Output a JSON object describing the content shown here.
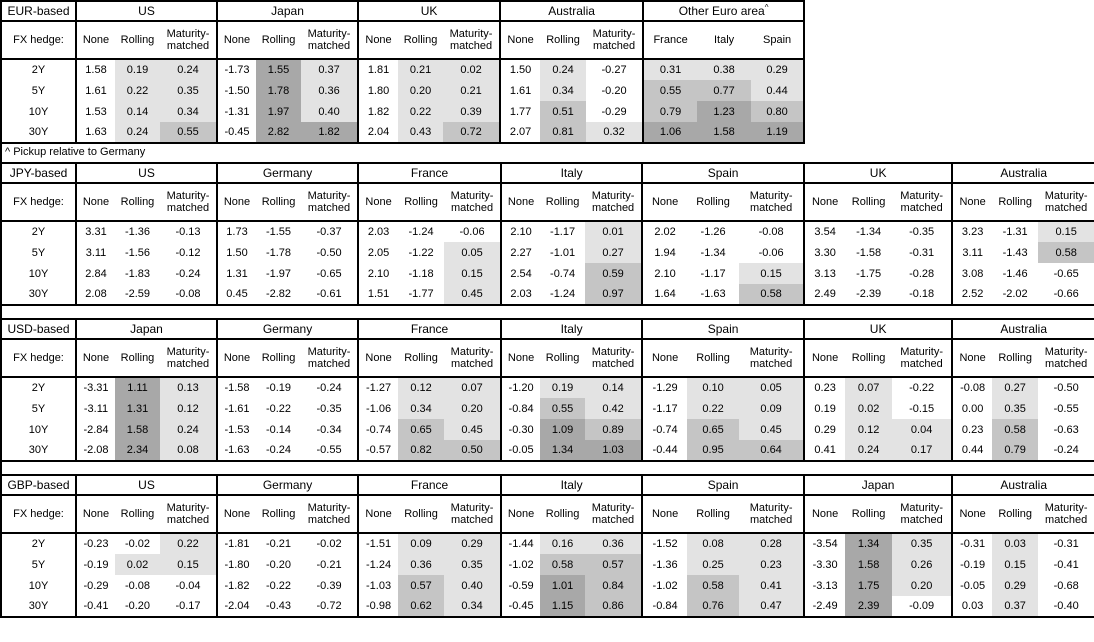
{
  "page": {
    "footnote": "^ Pickup relative to Germany",
    "fx_hedge_label": "FX hedge:",
    "maturities": [
      "2Y",
      "5Y",
      "10Y",
      "30Y"
    ]
  },
  "shading": {
    "light": "#e3e3e3",
    "medium": "#c5c5c5",
    "dark": "#a8a8a8",
    "thresholds": [
      0,
      0.5,
      1.0
    ],
    "rule": "hedged/pickup columns: value<0 white, 0 to 0.5 light, 0.5 to 1 medium, >=1 dark"
  },
  "tables": [
    {
      "base": "EUR-based",
      "groups": [
        {
          "name": "US",
          "cols": [
            "None",
            "Rolling",
            "Maturity-matched"
          ],
          "shaded_cols": [
            false,
            true,
            true
          ],
          "rows": [
            [
              "1.58",
              "0.19",
              "0.24"
            ],
            [
              "1.61",
              "0.22",
              "0.35"
            ],
            [
              "1.53",
              "0.14",
              "0.34"
            ],
            [
              "1.63",
              "0.24",
              "0.55"
            ]
          ]
        },
        {
          "name": "Japan",
          "cols": [
            "None",
            "Rolling",
            "Maturity-matched"
          ],
          "shaded_cols": [
            false,
            true,
            true
          ],
          "rows": [
            [
              "-1.73",
              "1.55",
              "0.37"
            ],
            [
              "-1.50",
              "1.78",
              "0.36"
            ],
            [
              "-1.31",
              "1.97",
              "0.40"
            ],
            [
              "-0.45",
              "2.82",
              "1.82"
            ]
          ]
        },
        {
          "name": "UK",
          "cols": [
            "None",
            "Rolling",
            "Maturity-matched"
          ],
          "shaded_cols": [
            false,
            true,
            true
          ],
          "rows": [
            [
              "1.81",
              "0.21",
              "0.02"
            ],
            [
              "1.80",
              "0.20",
              "0.21"
            ],
            [
              "1.82",
              "0.22",
              "0.39"
            ],
            [
              "2.04",
              "0.43",
              "0.72"
            ]
          ]
        },
        {
          "name": "Australia",
          "cols": [
            "None",
            "Rolling",
            "Maturity-matched"
          ],
          "shaded_cols": [
            false,
            true,
            true
          ],
          "rows": [
            [
              "1.50",
              "0.24",
              "-0.27"
            ],
            [
              "1.61",
              "0.34",
              "-0.20"
            ],
            [
              "1.77",
              "0.51",
              "-0.29"
            ],
            [
              "2.07",
              "0.81",
              "0.32"
            ]
          ]
        },
        {
          "name": "Other Euro area",
          "footnote_mark": "^",
          "cols": [
            "France",
            "Italy",
            "Spain"
          ],
          "shaded_cols": [
            true,
            true,
            true
          ],
          "rows": [
            [
              "0.31",
              "0.38",
              "0.29"
            ],
            [
              "0.55",
              "0.77",
              "0.44"
            ],
            [
              "0.79",
              "1.23",
              "0.80"
            ],
            [
              "1.06",
              "1.58",
              "1.19"
            ]
          ]
        }
      ]
    },
    {
      "base": "JPY-based",
      "groups": [
        {
          "name": "US",
          "cols": [
            "None",
            "Rolling",
            "Maturity-matched"
          ],
          "shaded_cols": [
            false,
            true,
            true
          ],
          "rows": [
            [
              "3.31",
              "-1.36",
              "-0.13"
            ],
            [
              "3.11",
              "-1.56",
              "-0.12"
            ],
            [
              "2.84",
              "-1.83",
              "-0.24"
            ],
            [
              "2.08",
              "-2.59",
              "-0.08"
            ]
          ]
        },
        {
          "name": "Germany",
          "cols": [
            "None",
            "Rolling",
            "Maturity-matched"
          ],
          "shaded_cols": [
            false,
            true,
            true
          ],
          "rows": [
            [
              "1.73",
              "-1.55",
              "-0.37"
            ],
            [
              "1.50",
              "-1.78",
              "-0.50"
            ],
            [
              "1.31",
              "-1.97",
              "-0.65"
            ],
            [
              "0.45",
              "-2.82",
              "-0.61"
            ]
          ]
        },
        {
          "name": "France",
          "cols": [
            "None",
            "Rolling",
            "Maturity-matched"
          ],
          "shaded_cols": [
            false,
            true,
            true
          ],
          "rows": [
            [
              "2.03",
              "-1.24",
              "-0.06"
            ],
            [
              "2.05",
              "-1.22",
              "0.05"
            ],
            [
              "2.10",
              "-1.18",
              "0.15"
            ],
            [
              "1.51",
              "-1.77",
              "0.45"
            ]
          ]
        },
        {
          "name": "Italy",
          "cols": [
            "None",
            "Rolling",
            "Maturity-matched"
          ],
          "shaded_cols": [
            false,
            true,
            true
          ],
          "rows": [
            [
              "2.10",
              "-1.17",
              "0.01"
            ],
            [
              "2.27",
              "-1.01",
              "0.27"
            ],
            [
              "2.54",
              "-0.74",
              "0.59"
            ],
            [
              "2.03",
              "-1.24",
              "0.97"
            ]
          ]
        },
        {
          "name": "Spain",
          "cols": [
            "None",
            "Rolling",
            "Maturity-matched"
          ],
          "shaded_cols": [
            false,
            true,
            true
          ],
          "rows": [
            [
              "2.02",
              "-1.26",
              "-0.08"
            ],
            [
              "1.94",
              "-1.34",
              "-0.06"
            ],
            [
              "2.10",
              "-1.17",
              "0.15"
            ],
            [
              "1.64",
              "-1.63",
              "0.58"
            ]
          ]
        },
        {
          "name": "UK",
          "cols": [
            "None",
            "Rolling",
            "Maturity-matched"
          ],
          "shaded_cols": [
            false,
            true,
            true
          ],
          "rows": [
            [
              "3.54",
              "-1.34",
              "-0.35"
            ],
            [
              "3.30",
              "-1.58",
              "-0.31"
            ],
            [
              "3.13",
              "-1.75",
              "-0.28"
            ],
            [
              "2.49",
              "-2.39",
              "-0.18"
            ]
          ]
        },
        {
          "name": "Australia",
          "cols": [
            "None",
            "Rolling",
            "Maturity-matched"
          ],
          "shaded_cols": [
            false,
            true,
            true
          ],
          "rows": [
            [
              "3.23",
              "-1.31",
              "0.15"
            ],
            [
              "3.11",
              "-1.43",
              "0.58"
            ],
            [
              "3.08",
              "-1.46",
              "-0.65"
            ],
            [
              "2.52",
              "-2.02",
              "-0.66"
            ]
          ]
        }
      ]
    },
    {
      "base": "USD-based",
      "groups": [
        {
          "name": "Japan",
          "cols": [
            "None",
            "Rolling",
            "Maturity-matched"
          ],
          "shaded_cols": [
            false,
            true,
            true
          ],
          "rows": [
            [
              "-3.31",
              "1.11",
              "0.13"
            ],
            [
              "-3.11",
              "1.31",
              "0.12"
            ],
            [
              "-2.84",
              "1.58",
              "0.24"
            ],
            [
              "-2.08",
              "2.34",
              "0.08"
            ]
          ]
        },
        {
          "name": "Germany",
          "cols": [
            "None",
            "Rolling",
            "Maturity-matched"
          ],
          "shaded_cols": [
            false,
            true,
            true
          ],
          "rows": [
            [
              "-1.58",
              "-0.19",
              "-0.24"
            ],
            [
              "-1.61",
              "-0.22",
              "-0.35"
            ],
            [
              "-1.53",
              "-0.14",
              "-0.34"
            ],
            [
              "-1.63",
              "-0.24",
              "-0.55"
            ]
          ]
        },
        {
          "name": "France",
          "cols": [
            "None",
            "Rolling",
            "Maturity-matched"
          ],
          "shaded_cols": [
            false,
            true,
            true
          ],
          "rows": [
            [
              "-1.27",
              "0.12",
              "0.07"
            ],
            [
              "-1.06",
              "0.34",
              "0.20"
            ],
            [
              "-0.74",
              "0.65",
              "0.45"
            ],
            [
              "-0.57",
              "0.82",
              "0.50"
            ]
          ]
        },
        {
          "name": "Italy",
          "cols": [
            "None",
            "Rolling",
            "Maturity-matched"
          ],
          "shaded_cols": [
            false,
            true,
            true
          ],
          "rows": [
            [
              "-1.20",
              "0.19",
              "0.14"
            ],
            [
              "-0.84",
              "0.55",
              "0.42"
            ],
            [
              "-0.30",
              "1.09",
              "0.89"
            ],
            [
              "-0.05",
              "1.34",
              "1.03"
            ]
          ]
        },
        {
          "name": "Spain",
          "cols": [
            "None",
            "Rolling",
            "Maturity-matched"
          ],
          "shaded_cols": [
            false,
            true,
            true
          ],
          "rows": [
            [
              "-1.29",
              "0.10",
              "0.05"
            ],
            [
              "-1.17",
              "0.22",
              "0.09"
            ],
            [
              "-0.74",
              "0.65",
              "0.45"
            ],
            [
              "-0.44",
              "0.95",
              "0.64"
            ]
          ]
        },
        {
          "name": "UK",
          "cols": [
            "None",
            "Rolling",
            "Maturity-matched"
          ],
          "shaded_cols": [
            false,
            true,
            true
          ],
          "rows": [
            [
              "0.23",
              "0.07",
              "-0.22"
            ],
            [
              "0.19",
              "0.02",
              "-0.15"
            ],
            [
              "0.29",
              "0.12",
              "0.04"
            ],
            [
              "0.41",
              "0.24",
              "0.17"
            ]
          ]
        },
        {
          "name": "Australia",
          "cols": [
            "None",
            "Rolling",
            "Maturity-matched"
          ],
          "shaded_cols": [
            false,
            true,
            true
          ],
          "rows": [
            [
              "-0.08",
              "0.27",
              "-0.50"
            ],
            [
              "0.00",
              "0.35",
              "-0.55"
            ],
            [
              "0.23",
              "0.58",
              "-0.63"
            ],
            [
              "0.44",
              "0.79",
              "-0.24"
            ]
          ]
        }
      ]
    },
    {
      "base": "GBP-based",
      "groups": [
        {
          "name": "US",
          "cols": [
            "None",
            "Rolling",
            "Maturity-matched"
          ],
          "shaded_cols": [
            false,
            true,
            true
          ],
          "rows": [
            [
              "-0.23",
              "-0.02",
              "0.22"
            ],
            [
              "-0.19",
              "0.02",
              "0.15"
            ],
            [
              "-0.29",
              "-0.08",
              "-0.04"
            ],
            [
              "-0.41",
              "-0.20",
              "-0.17"
            ]
          ]
        },
        {
          "name": "Germany",
          "cols": [
            "None",
            "Rolling",
            "Maturity-matched"
          ],
          "shaded_cols": [
            false,
            true,
            true
          ],
          "rows": [
            [
              "-1.81",
              "-0.21",
              "-0.02"
            ],
            [
              "-1.80",
              "-0.20",
              "-0.21"
            ],
            [
              "-1.82",
              "-0.22",
              "-0.39"
            ],
            [
              "-2.04",
              "-0.43",
              "-0.72"
            ]
          ]
        },
        {
          "name": "France",
          "cols": [
            "None",
            "Rolling",
            "Maturity-matched"
          ],
          "shaded_cols": [
            false,
            true,
            true
          ],
          "rows": [
            [
              "-1.51",
              "0.09",
              "0.29"
            ],
            [
              "-1.24",
              "0.36",
              "0.35"
            ],
            [
              "-1.03",
              "0.57",
              "0.40"
            ],
            [
              "-0.98",
              "0.62",
              "0.34"
            ]
          ]
        },
        {
          "name": "Italy",
          "cols": [
            "None",
            "Rolling",
            "Maturity-matched"
          ],
          "shaded_cols": [
            false,
            true,
            true
          ],
          "rows": [
            [
              "-1.44",
              "0.16",
              "0.36"
            ],
            [
              "-1.02",
              "0.58",
              "0.57"
            ],
            [
              "-0.59",
              "1.01",
              "0.84"
            ],
            [
              "-0.45",
              "1.15",
              "0.86"
            ]
          ]
        },
        {
          "name": "Spain",
          "cols": [
            "None",
            "Rolling",
            "Maturity-matched"
          ],
          "shaded_cols": [
            false,
            true,
            true
          ],
          "rows": [
            [
              "-1.52",
              "0.08",
              "0.28"
            ],
            [
              "-1.36",
              "0.25",
              "0.23"
            ],
            [
              "-1.02",
              "0.58",
              "0.41"
            ],
            [
              "-0.84",
              "0.76",
              "0.47"
            ]
          ]
        },
        {
          "name": "Japan",
          "cols": [
            "None",
            "Rolling",
            "Maturity-matched"
          ],
          "shaded_cols": [
            false,
            true,
            true
          ],
          "rows": [
            [
              "-3.54",
              "1.34",
              "0.35"
            ],
            [
              "-3.30",
              "1.58",
              "0.26"
            ],
            [
              "-3.13",
              "1.75",
              "0.20"
            ],
            [
              "-2.49",
              "2.39",
              "-0.09"
            ]
          ]
        },
        {
          "name": "Australia",
          "cols": [
            "None",
            "Rolling",
            "Maturity-matched"
          ],
          "shaded_cols": [
            false,
            true,
            true
          ],
          "rows": [
            [
              "-0.31",
              "0.03",
              "-0.31"
            ],
            [
              "-0.19",
              "0.15",
              "-0.41"
            ],
            [
              "-0.05",
              "0.29",
              "-0.68"
            ],
            [
              "0.03",
              "0.37",
              "-0.40"
            ]
          ]
        }
      ]
    }
  ]
}
